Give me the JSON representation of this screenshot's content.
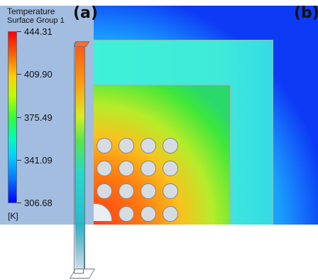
{
  "legend": {
    "title": "Temperature",
    "subtitle": "Surface Group 1",
    "unit": "[K]",
    "ticks": [
      "444.31",
      "409.90",
      "375.49",
      "341.09",
      "306.68"
    ]
  },
  "panels": {
    "a": "(a)",
    "b": "(b)"
  },
  "colors": {
    "legend_background": "#a2bde0",
    "hot": "#ff0000",
    "cold": "#0000ff"
  }
}
